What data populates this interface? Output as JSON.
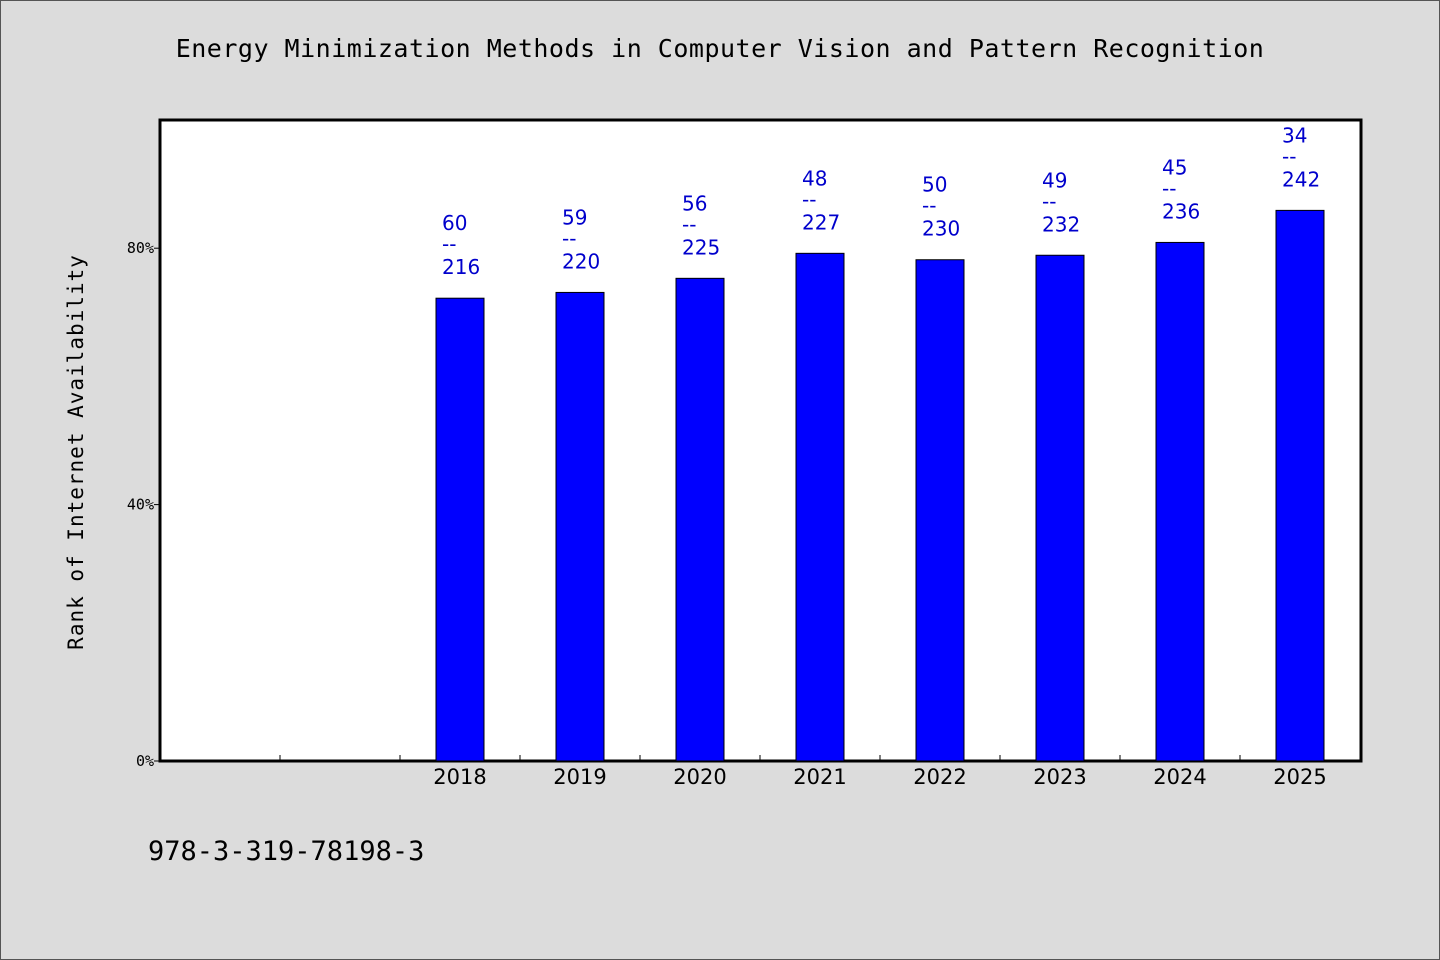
{
  "chart_data": {
    "type": "bar",
    "title": "Energy Minimization Methods in Computer Vision and Pattern Recognition",
    "ylabel": "Rank of Internet Availability",
    "xlabel": "",
    "categories": [
      "2018",
      "2019",
      "2020",
      "2021",
      "2022",
      "2023",
      "2024",
      "2025"
    ],
    "values": [
      72.2,
      73.1,
      75.3,
      79.2,
      78.2,
      78.9,
      80.9,
      85.9
    ],
    "data_labels": [
      {
        "top": "60",
        "sep": "--",
        "bottom": "216"
      },
      {
        "top": "59",
        "sep": "--",
        "bottom": "220"
      },
      {
        "top": "56",
        "sep": "--",
        "bottom": "225"
      },
      {
        "top": "48",
        "sep": "--",
        "bottom": "227"
      },
      {
        "top": "50",
        "sep": "--",
        "bottom": "230"
      },
      {
        "top": "49",
        "sep": "--",
        "bottom": "232"
      },
      {
        "top": "45",
        "sep": "--",
        "bottom": "236"
      },
      {
        "top": "34",
        "sep": "--",
        "bottom": "242"
      }
    ],
    "y_ticks": [
      0,
      40,
      80
    ],
    "y_tick_labels": [
      "0%",
      "40%",
      "80%"
    ],
    "ylim": [
      0,
      100
    ],
    "empty_leading_slots": 2,
    "grid": false,
    "bar_color": "#0000ff",
    "label_color": "#0000cc"
  },
  "footer": {
    "code": "978-3-319-78198-3"
  },
  "colors": {
    "background": "#dcdcdc",
    "plot_background": "#ffffff"
  }
}
